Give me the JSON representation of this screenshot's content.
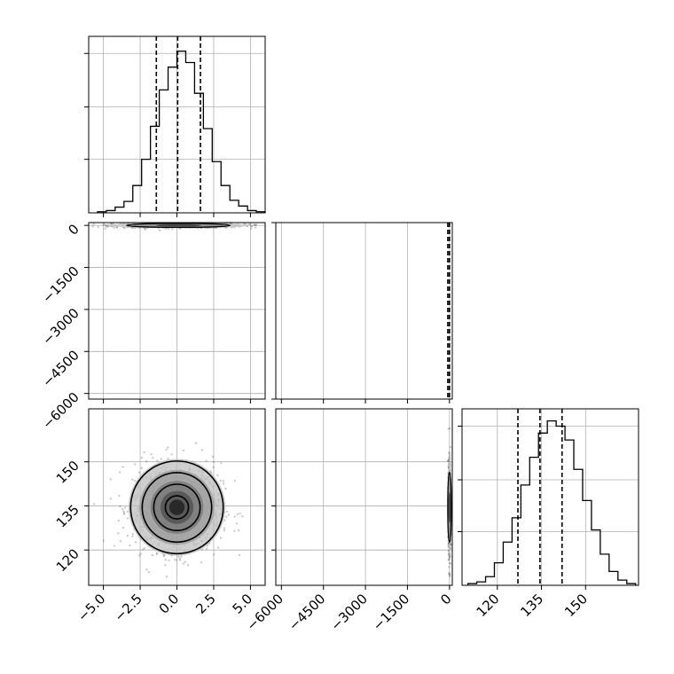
{
  "chart_data": {
    "type": "corner",
    "title": "",
    "parameters": [
      {
        "name": "",
        "xlim": [
          -6.0,
          6.0
        ],
        "ticks": [
          -5.0,
          -2.5,
          0.0,
          2.5,
          5.0
        ],
        "tick_labels": [
          "−5.0",
          "−2.5",
          "0.0",
          "2.5",
          "5.0"
        ]
      },
      {
        "name": "",
        "xlim": [
          -6200,
          100
        ],
        "ticks": [
          -6000,
          -4500,
          -3000,
          -1500,
          0
        ],
        "tick_labels": [
          "−6000",
          "−4500",
          "−3000",
          "−1500",
          "0"
        ]
      },
      {
        "name": "",
        "xlim": [
          108,
          168
        ],
        "ticks": [
          120,
          135,
          150
        ],
        "tick_labels": [
          "120",
          "135",
          "150"
        ]
      }
    ],
    "grid": true,
    "histograms": [
      {
        "param": 0,
        "bin_edges": [
          -5.4,
          -4.8,
          -4.2,
          -3.6,
          -3.0,
          -2.4,
          -1.8,
          -1.2,
          -0.6,
          0.0,
          0.6,
          1.2,
          1.8,
          2.4,
          3.0,
          3.6,
          4.2,
          4.8,
          5.4,
          6.0
        ],
        "counts": [
          1,
          2,
          5,
          10,
          24,
          47,
          76,
          108,
          128,
          142,
          132,
          105,
          74,
          45,
          24,
          11,
          6,
          2,
          1
        ],
        "ymax": 155,
        "quantiles": [
          -1.4,
          0.05,
          1.6
        ]
      },
      {
        "param": 1,
        "bin_edges": [
          -6200,
          100
        ],
        "counts": [],
        "ymax": 1,
        "quantiles": [
          -60,
          -5,
          0
        ]
      },
      {
        "param": 2,
        "bin_edges": [
          110,
          113,
          116,
          119,
          122,
          125,
          128,
          131,
          134,
          137,
          140,
          143,
          146,
          149,
          152,
          155,
          158,
          161,
          164,
          167
        ],
        "counts": [
          1,
          2,
          5,
          13,
          25,
          39,
          58,
          74,
          88,
          95,
          92,
          84,
          67,
          49,
          32,
          18,
          8,
          3,
          1
        ],
        "ymax": 102,
        "quantiles": [
          127,
          134.5,
          142
        ]
      }
    ],
    "panels_2d": [
      {
        "x_param": 0,
        "y_param": 1,
        "center": [
          0.1,
          0
        ],
        "spread": [
          2.2,
          45
        ]
      },
      {
        "x_param": 0,
        "y_param": 2,
        "center": [
          0.0,
          134.5
        ],
        "spread": [
          1.5,
          7.5
        ],
        "contour_levels": [
          0.5,
          1.0,
          1.5,
          2.0
        ]
      },
      {
        "x_param": 1,
        "y_param": 2,
        "center": [
          0,
          134.5
        ],
        "spread": [
          20,
          7.5
        ]
      }
    ]
  }
}
